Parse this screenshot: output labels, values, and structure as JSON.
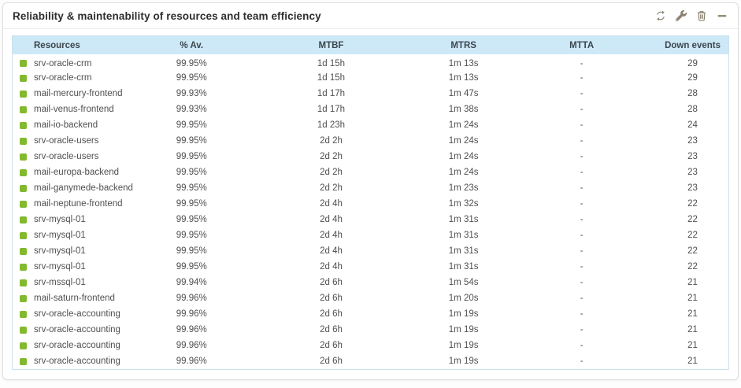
{
  "colors": {
    "status_ok": "#82b92e",
    "table_header_bg": "#cde9f8",
    "table_border": "#cbdfec",
    "icon_gray": "#8b8271"
  },
  "widget": {
    "title": "Reliability & maintenability of resources and team efficiency",
    "actions": [
      {
        "label": "refresh",
        "icon": "refresh-icon"
      },
      {
        "label": "configure",
        "icon": "wrench-icon"
      },
      {
        "label": "delete",
        "icon": "trash-icon"
      },
      {
        "label": "minimize",
        "icon": "minimize-icon"
      }
    ]
  },
  "table": {
    "columns": [
      "Resources",
      "% Av.",
      "MTBF",
      "MTRS",
      "MTTA",
      "Down events"
    ],
    "rows": [
      {
        "status": "ok",
        "name": "srv-oracle-crm",
        "availability": "99.95%",
        "mtbf": "1d 15h",
        "mtrs": "1m 13s",
        "mtta": "-",
        "down_events": "29"
      },
      {
        "status": "ok",
        "name": "srv-oracle-crm",
        "availability": "99.95%",
        "mtbf": "1d 15h",
        "mtrs": "1m 13s",
        "mtta": "-",
        "down_events": "29"
      },
      {
        "status": "ok",
        "name": "mail-mercury-frontend",
        "availability": "99.93%",
        "mtbf": "1d 17h",
        "mtrs": "1m 47s",
        "mtta": "-",
        "down_events": "28"
      },
      {
        "status": "ok",
        "name": "mail-venus-frontend",
        "availability": "99.93%",
        "mtbf": "1d 17h",
        "mtrs": "1m 38s",
        "mtta": "-",
        "down_events": "28"
      },
      {
        "status": "ok",
        "name": "mail-io-backend",
        "availability": "99.95%",
        "mtbf": "1d 23h",
        "mtrs": "1m 24s",
        "mtta": "-",
        "down_events": "24"
      },
      {
        "status": "ok",
        "name": "srv-oracle-users",
        "availability": "99.95%",
        "mtbf": "2d 2h",
        "mtrs": "1m 24s",
        "mtta": "-",
        "down_events": "23"
      },
      {
        "status": "ok",
        "name": "srv-oracle-users",
        "availability": "99.95%",
        "mtbf": "2d 2h",
        "mtrs": "1m 24s",
        "mtta": "-",
        "down_events": "23"
      },
      {
        "status": "ok",
        "name": "mail-europa-backend",
        "availability": "99.95%",
        "mtbf": "2d 2h",
        "mtrs": "1m 24s",
        "mtta": "-",
        "down_events": "23"
      },
      {
        "status": "ok",
        "name": "mail-ganymede-backend",
        "availability": "99.95%",
        "mtbf": "2d 2h",
        "mtrs": "1m 23s",
        "mtta": "-",
        "down_events": "23"
      },
      {
        "status": "ok",
        "name": "mail-neptune-frontend",
        "availability": "99.95%",
        "mtbf": "2d 4h",
        "mtrs": "1m 32s",
        "mtta": "-",
        "down_events": "22"
      },
      {
        "status": "ok",
        "name": "srv-mysql-01",
        "availability": "99.95%",
        "mtbf": "2d 4h",
        "mtrs": "1m 31s",
        "mtta": "-",
        "down_events": "22"
      },
      {
        "status": "ok",
        "name": "srv-mysql-01",
        "availability": "99.95%",
        "mtbf": "2d 4h",
        "mtrs": "1m 31s",
        "mtta": "-",
        "down_events": "22"
      },
      {
        "status": "ok",
        "name": "srv-mysql-01",
        "availability": "99.95%",
        "mtbf": "2d 4h",
        "mtrs": "1m 31s",
        "mtta": "-",
        "down_events": "22"
      },
      {
        "status": "ok",
        "name": "srv-mysql-01",
        "availability": "99.95%",
        "mtbf": "2d 4h",
        "mtrs": "1m 31s",
        "mtta": "-",
        "down_events": "22"
      },
      {
        "status": "ok",
        "name": "srv-mssql-01",
        "availability": "99.94%",
        "mtbf": "2d 6h",
        "mtrs": "1m 54s",
        "mtta": "-",
        "down_events": "21"
      },
      {
        "status": "ok",
        "name": "mail-saturn-frontend",
        "availability": "99.96%",
        "mtbf": "2d 6h",
        "mtrs": "1m 20s",
        "mtta": "-",
        "down_events": "21"
      },
      {
        "status": "ok",
        "name": "srv-oracle-accounting",
        "availability": "99.96%",
        "mtbf": "2d 6h",
        "mtrs": "1m 19s",
        "mtta": "-",
        "down_events": "21"
      },
      {
        "status": "ok",
        "name": "srv-oracle-accounting",
        "availability": "99.96%",
        "mtbf": "2d 6h",
        "mtrs": "1m 19s",
        "mtta": "-",
        "down_events": "21"
      },
      {
        "status": "ok",
        "name": "srv-oracle-accounting",
        "availability": "99.96%",
        "mtbf": "2d 6h",
        "mtrs": "1m 19s",
        "mtta": "-",
        "down_events": "21"
      },
      {
        "status": "ok",
        "name": "srv-oracle-accounting",
        "availability": "99.96%",
        "mtbf": "2d 6h",
        "mtrs": "1m 19s",
        "mtta": "-",
        "down_events": "21"
      }
    ]
  }
}
